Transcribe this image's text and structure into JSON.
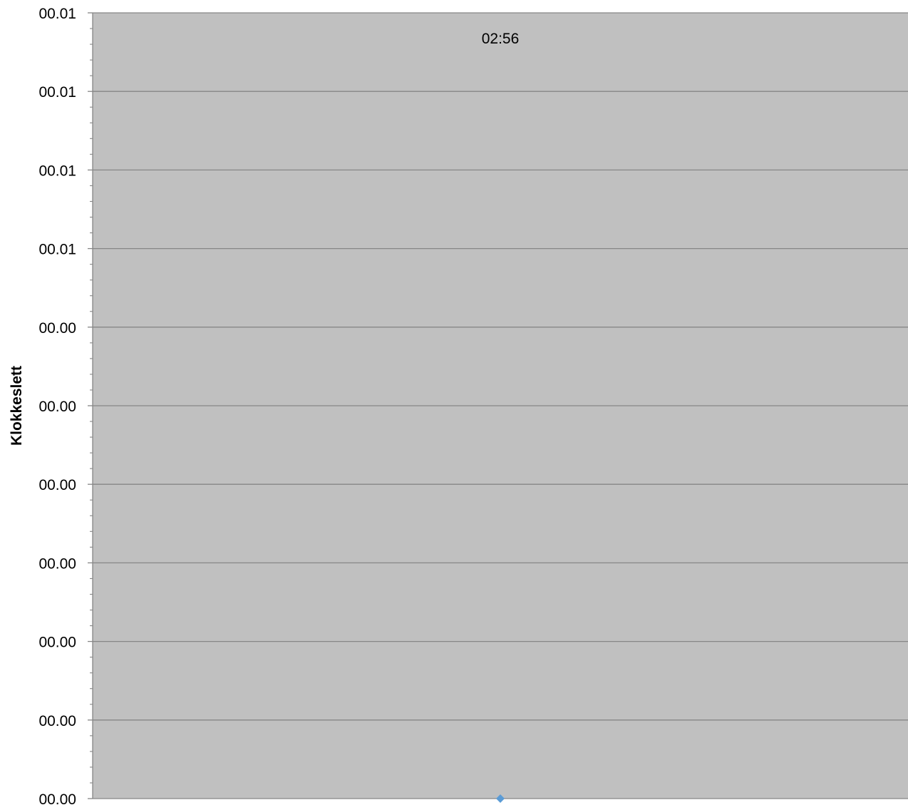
{
  "chart_data": {
    "type": "scatter",
    "title": "",
    "xlabel": "",
    "ylabel": "Klokkeslett",
    "y_tick_labels": [
      "00.00",
      "00.00",
      "00.00",
      "00.00",
      "00.00",
      "00.00",
      "00.00",
      "00.01",
      "00.01",
      "00.01",
      "00.01"
    ],
    "ylim": [
      0,
      10
    ],
    "grid": true,
    "legend": "none",
    "series": [
      {
        "points": [
          {
            "x": 1,
            "y": 0,
            "label": "02:56"
          }
        ]
      }
    ],
    "xlim": [
      0,
      2
    ],
    "colors": {
      "plot_background": "#c0c0c0",
      "gridline": "#868686",
      "axis": "#868686",
      "marker": "#5b9bd5"
    }
  }
}
